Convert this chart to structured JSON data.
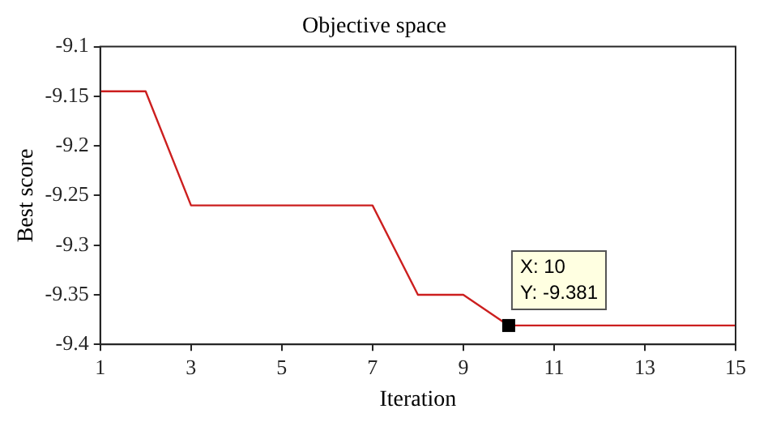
{
  "chart_data": {
    "type": "line",
    "title": "Objective space",
    "xlabel": "Iteration",
    "ylabel": "Best score",
    "x": [
      1,
      2,
      3,
      4,
      5,
      6,
      7,
      8,
      9,
      10,
      11,
      12,
      13,
      14,
      15
    ],
    "series": [
      {
        "color": "#cc1f1f",
        "values": [
          -9.145,
          -9.145,
          -9.26,
          -9.26,
          -9.26,
          -9.26,
          -9.26,
          -9.35,
          -9.35,
          -9.381,
          -9.381,
          -9.381,
          -9.381,
          -9.381,
          -9.381
        ]
      }
    ],
    "xlim": [
      1,
      15
    ],
    "xticks": [
      1,
      3,
      5,
      7,
      9,
      11,
      13,
      15
    ],
    "ylim": [
      -9.4,
      -9.1
    ],
    "yticks": [
      -9.4,
      -9.35,
      -9.3,
      -9.25,
      -9.2,
      -9.15,
      -9.1
    ],
    "annotations": [
      {
        "text": "X: 10\nY: -9.381",
        "x": 10,
        "y": -9.381
      }
    ],
    "grid": false,
    "legend": false,
    "marker": "none",
    "line_style": "solid"
  }
}
